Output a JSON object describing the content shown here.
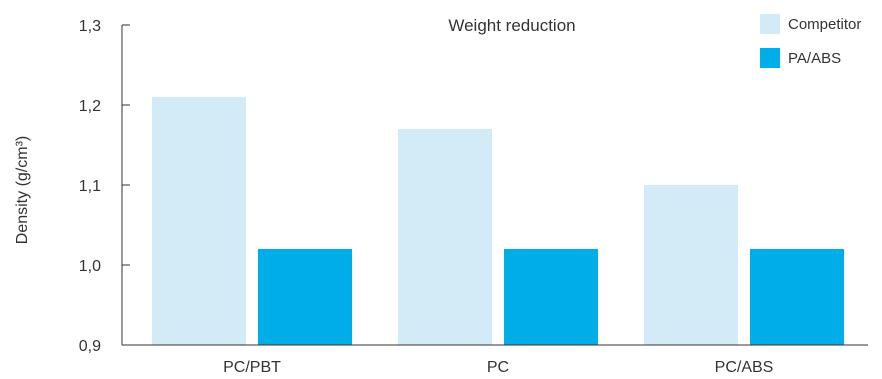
{
  "chart_data": {
    "type": "bar",
    "title": "Weight reduction",
    "xlabel": "",
    "ylabel": "Density (g/cm³)",
    "categories": [
      "PC/PBT",
      "PC",
      "PC/ABS"
    ],
    "series": [
      {
        "name": "Competitor",
        "values": [
          1.21,
          1.17,
          1.1
        ],
        "color": "#d3eaf7"
      },
      {
        "name": "PA/ABS",
        "values": [
          1.02,
          1.02,
          1.02
        ],
        "color": "#00aee7"
      }
    ],
    "ylim": [
      0.9,
      1.3
    ],
    "yticks": [
      0.9,
      1.0,
      1.1,
      1.2,
      1.3
    ],
    "ytick_labels": [
      "0,9",
      "1,0",
      "1,1",
      "1,2",
      "1,3"
    ],
    "legend_position": "top-right",
    "grid": false
  }
}
